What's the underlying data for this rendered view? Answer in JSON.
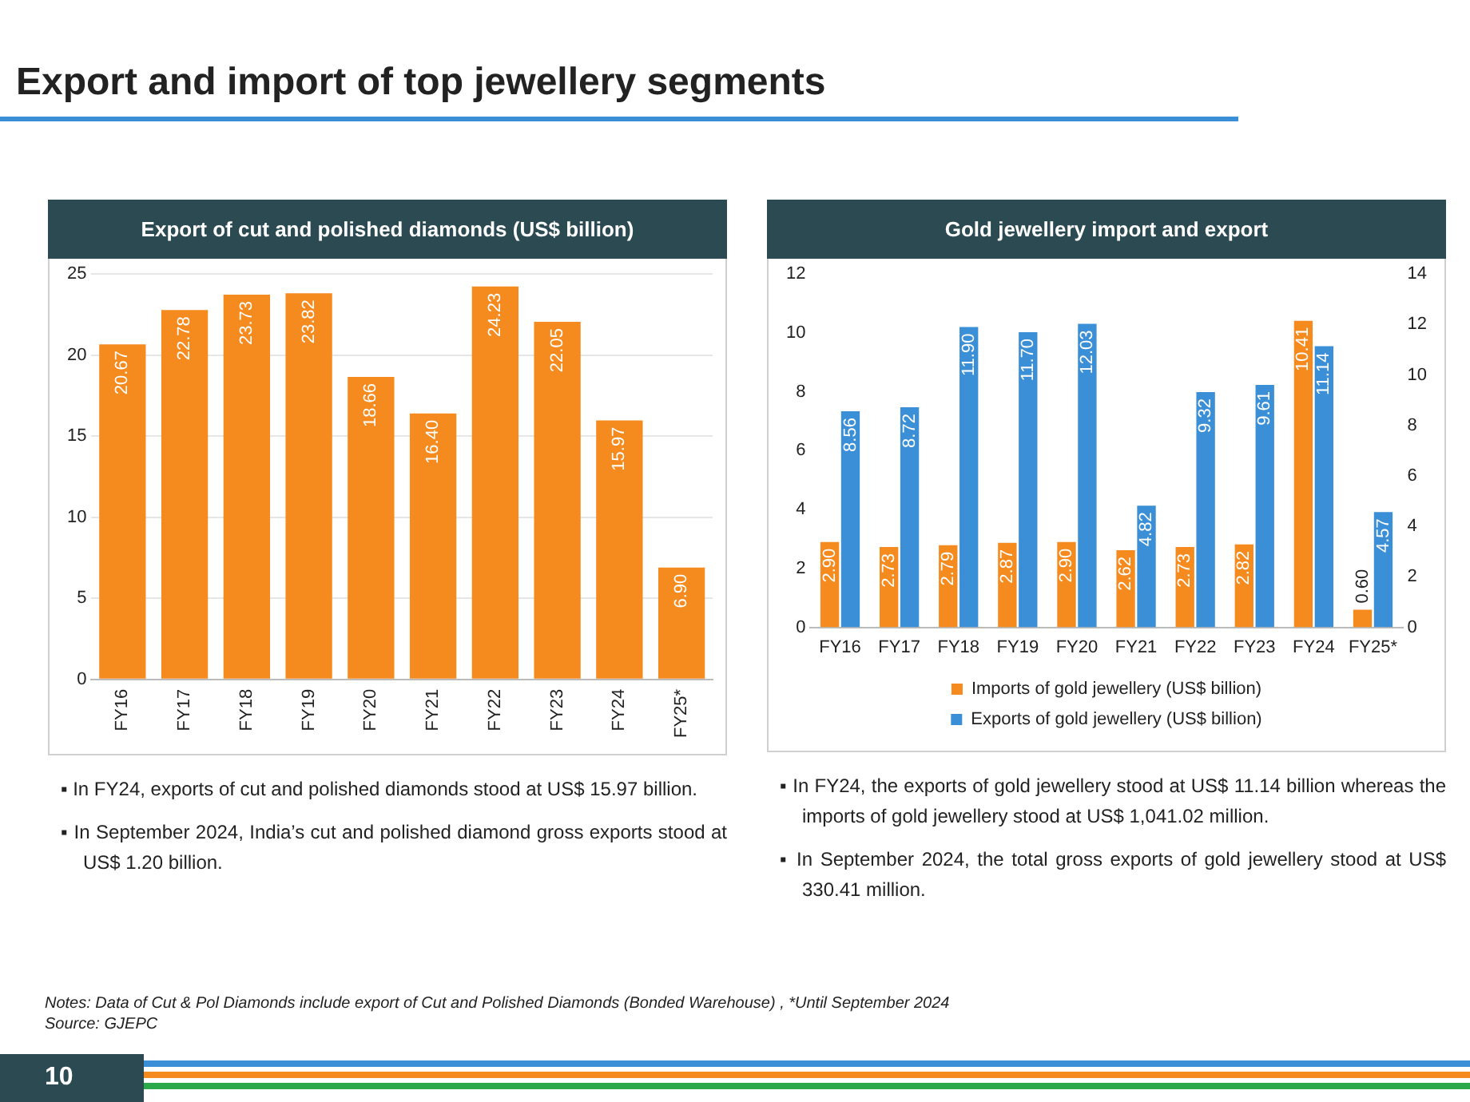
{
  "chart_data": [
    {
      "type": "other",
      "title": "Export and import of top jewellery segments",
      "annotations": [
        "Notes: Data of Cut & Pol Diamonds include export of Cut and Polished Diamonds (Bonded Warehouse) , *Until September 2024",
        "Source: GJEPC",
        "10"
      ]
    },
    {
      "type": "bar",
      "title": "Export of cut and polished diamonds (US$ billion)",
      "categories": [
        "FY16",
        "FY17",
        "FY18",
        "FY19",
        "FY20",
        "FY21",
        "FY22",
        "FY23",
        "FY24",
        "FY25*"
      ],
      "values": [
        20.67,
        22.78,
        23.73,
        23.82,
        18.66,
        16.4,
        24.23,
        22.05,
        15.97,
        6.9
      ],
      "value_labels": [
        "20.67",
        "22.78",
        "23.73",
        "23.82",
        "18.66",
        "16.40",
        "24.23",
        "22.05",
        "15.97",
        "6.90"
      ],
      "color": "#f58a1f",
      "ylim": [
        0,
        25
      ],
      "yticks": [
        0,
        5,
        10,
        15,
        20,
        25
      ],
      "grid": "y",
      "annotations": [
        "▪ In FY24, exports of cut and polished diamonds stood at US$ 15.97 billion.",
        "▪ In September 2024, India’s cut and polished diamond gross exports stood at US$ 1.20 billion."
      ]
    },
    {
      "type": "bar",
      "title": "Gold jewellery import and export",
      "categories": [
        "FY16",
        "FY17",
        "FY18",
        "FY19",
        "FY20",
        "FY21",
        "FY22",
        "FY23",
        "FY24",
        "FY25*"
      ],
      "series": [
        {
          "name": "Imports of gold jewellery (US$ billion)",
          "color": "#f58a1f",
          "values": [
            2.9,
            2.73,
            2.79,
            2.87,
            2.9,
            2.62,
            2.73,
            2.82,
            10.41,
            0.6
          ],
          "value_labels": [
            "2.90",
            "2.73",
            "2.79",
            "2.87",
            "2.90",
            "2.62",
            "2.73",
            "2.82",
            "10.41",
            "0.60"
          ]
        },
        {
          "name": "Exports of gold jewellery (US$ billion)",
          "color": "#3a8fd6",
          "axis": "y2",
          "values": [
            8.56,
            8.72,
            11.9,
            11.7,
            12.03,
            4.82,
            9.32,
            9.61,
            11.14,
            4.57
          ],
          "value_labels": [
            "8.56",
            "8.72",
            "11.90",
            "11.70",
            "12.03",
            "4.82",
            "9.32",
            "9.61",
            "11.14",
            "4.57"
          ]
        }
      ],
      "ylim": [
        0,
        12
      ],
      "yticks": [
        0,
        2,
        4,
        6,
        8,
        10,
        12
      ],
      "y2lim": [
        0,
        14
      ],
      "y2ticks": [
        0,
        2,
        4,
        6,
        8,
        10,
        12,
        14
      ],
      "legend": "bottom",
      "annotations": [
        "▪ In FY24, the exports of gold jewellery stood at US$ 11.14 billion whereas the imports of gold jewellery stood at US$ 1,041.02 million.",
        "▪ In September 2024, the total gross exports of gold jewellery stood at US$ 330.41 million."
      ]
    }
  ]
}
